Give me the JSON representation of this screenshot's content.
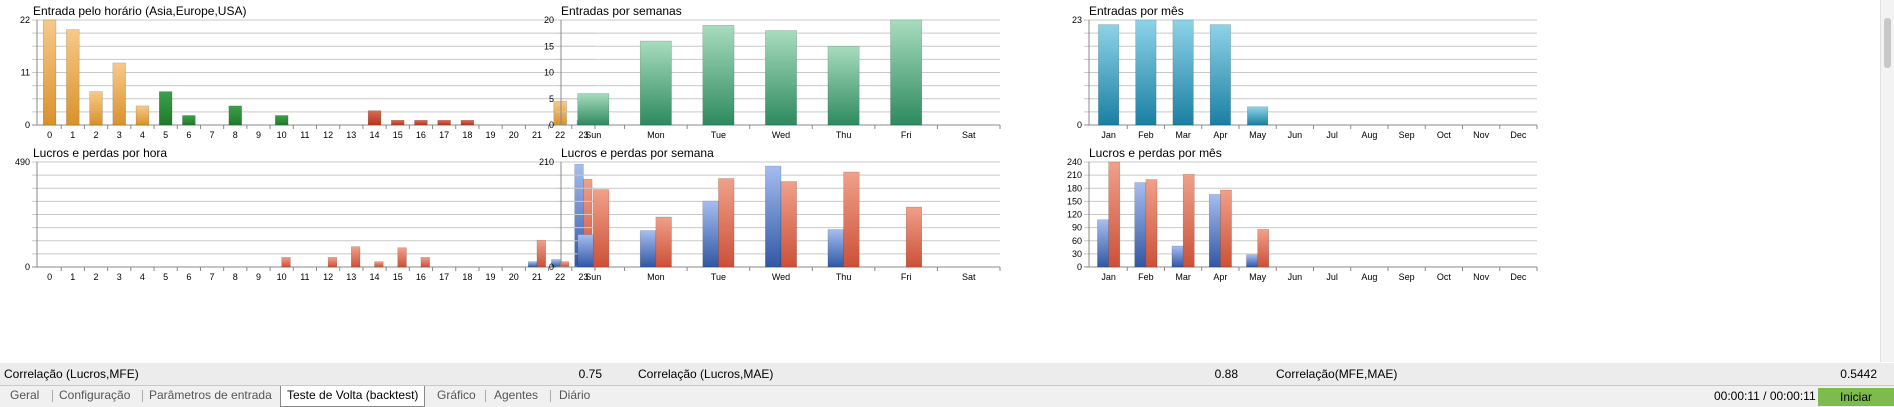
{
  "chart_data": [
    {
      "id": "entries-hour",
      "type": "bar",
      "title": "Entrada pelo horário (Asia,Europe,USA)",
      "categories": [
        "0",
        "1",
        "2",
        "3",
        "4",
        "5",
        "6",
        "7",
        "8",
        "9",
        "10",
        "11",
        "12",
        "13",
        "14",
        "15",
        "16",
        "17",
        "18",
        "19",
        "20",
        "21",
        "22",
        "23"
      ],
      "values": [
        22,
        20,
        7,
        13,
        4,
        7,
        2,
        0,
        4,
        0,
        2,
        0,
        0,
        0,
        3,
        1,
        1,
        1,
        1,
        0,
        0,
        0,
        5,
        1
      ],
      "bar_colors": [
        "orange",
        "orange",
        "orange",
        "orange",
        "orange",
        "green",
        "green",
        "green",
        "green",
        "green",
        "green",
        "green",
        "green",
        "green",
        "red",
        "red",
        "red",
        "red",
        "red",
        "red",
        "red",
        "red",
        "orange",
        "orange"
      ],
      "ylim": [
        0,
        22
      ],
      "yticks": [
        "0",
        "11",
        "22"
      ]
    },
    {
      "id": "entries-week",
      "type": "bar",
      "title": "Entradas por semanas",
      "categories": [
        "Sun",
        "Mon",
        "Tue",
        "Wed",
        "Thu",
        "Fri",
        "Sat"
      ],
      "values": [
        6,
        16,
        19,
        18,
        15,
        20,
        0
      ],
      "ylim": [
        0,
        20
      ],
      "yticks": [
        "0",
        "5",
        "10",
        "15",
        "20"
      ]
    },
    {
      "id": "entries-month",
      "type": "bar",
      "title": "Entradas por mês",
      "categories": [
        "Jan",
        "Feb",
        "Mar",
        "Apr",
        "May",
        "Jun",
        "Jul",
        "Aug",
        "Sep",
        "Oct",
        "Nov",
        "Dec"
      ],
      "values": [
        22,
        23,
        23,
        22,
        4,
        0,
        0,
        0,
        0,
        0,
        0,
        0
      ],
      "ylim": [
        0,
        23
      ],
      "yticks": [
        "0",
        "23"
      ]
    },
    {
      "id": "pl-hour",
      "type": "bar",
      "title": "Lucros e perdas por hora",
      "categories": [
        "0",
        "1",
        "2",
        "3",
        "4",
        "5",
        "6",
        "7",
        "8",
        "9",
        "10",
        "11",
        "12",
        "13",
        "14",
        "15",
        "16",
        "17",
        "18",
        "19",
        "20",
        "21",
        "22",
        "23"
      ],
      "series": [
        {
          "values": [
            0,
            0,
            0,
            0,
            0,
            0,
            0,
            0,
            0,
            0,
            0,
            0,
            0,
            0,
            0,
            0,
            0,
            0,
            0,
            0,
            0,
            25,
            35,
            480
          ]
        },
        {
          "values": [
            0,
            0,
            0,
            0,
            0,
            0,
            0,
            0,
            0,
            0,
            45,
            0,
            45,
            95,
            25,
            90,
            45,
            0,
            0,
            0,
            0,
            125,
            25,
            410
          ]
        }
      ],
      "ylim": [
        0,
        490
      ],
      "yticks": [
        "0",
        "490"
      ]
    },
    {
      "id": "pl-week",
      "type": "bar",
      "title": "Lucros e perdas por semana",
      "categories": [
        "Sun",
        "Mon",
        "Tue",
        "Wed",
        "Thu",
        "Fri",
        "Sat"
      ],
      "series": [
        {
          "values": [
            65,
            73,
            132,
            202,
            75,
            0,
            0
          ]
        },
        {
          "values": [
            155,
            100,
            177,
            171,
            190,
            120,
            0
          ]
        }
      ],
      "ylim": [
        0,
        210
      ],
      "yticks": [
        "0",
        "210"
      ]
    },
    {
      "id": "pl-month",
      "type": "bar",
      "title": "Lucros e perdas por mês",
      "categories": [
        "Jan",
        "Feb",
        "Mar",
        "Apr",
        "May",
        "Jun",
        "Jul",
        "Aug",
        "Sep",
        "Oct",
        "Nov",
        "Dec"
      ],
      "series": [
        {
          "values": [
            108,
            193,
            48,
            166,
            28,
            0,
            0,
            0,
            0,
            0,
            0,
            0
          ]
        },
        {
          "values": [
            240,
            200,
            212,
            176,
            86,
            0,
            0,
            0,
            0,
            0,
            0,
            0
          ]
        }
      ],
      "ylim": [
        0,
        240
      ],
      "yticks": [
        "0",
        "30",
        "60",
        "90",
        "120",
        "150",
        "180",
        "210",
        "240"
      ]
    }
  ],
  "colors": {
    "orange": "#d9922a",
    "green": "#1f7a2a",
    "red": "#b8351f",
    "teal": "#3a9a6e",
    "cyan": "#2a93b5",
    "blue": "#3157a4",
    "salmon": "#cc5038"
  },
  "correlations": [
    {
      "label": "Correlação (Lucros,MFE)",
      "value": "0.75"
    },
    {
      "label": "Correlação (Lucros,MAE)",
      "value": "0.88"
    },
    {
      "label": "Correlação(MFE,MAE)",
      "value": "0.5442"
    }
  ],
  "tabs": [
    "Geral",
    "Configuração",
    "Parâmetros de entrada",
    "Teste de Volta (backtest)",
    "Gráfico",
    "Agentes",
    "Diário"
  ],
  "active_tab": "Teste de Volta (backtest)",
  "timer": "00:00:11 / 00:00:11",
  "start_button": "Iniciar"
}
